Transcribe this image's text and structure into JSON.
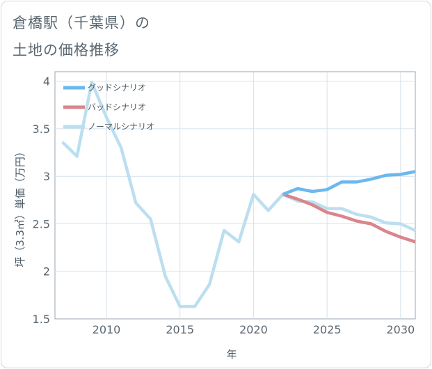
{
  "title_line1": "倉橋駅（千葉県）の",
  "title_line2": "土地の価格推移",
  "chart_data": {
    "type": "line",
    "xlabel": "年",
    "ylabel": "坪（3.3㎡）単価（万円）",
    "xlim": [
      2006.5,
      2031
    ],
    "ylim": [
      1.5,
      4.1
    ],
    "xticks": [
      2010,
      2015,
      2020,
      2025,
      2030
    ],
    "yticks": [
      1.5,
      2,
      2.5,
      3,
      3.5,
      4
    ],
    "xtick_labels": [
      "2010",
      "2015",
      "2020",
      "2025",
      "2030"
    ],
    "ytick_labels": [
      "1.5",
      "2",
      "2.5",
      "3",
      "3.5",
      "4"
    ],
    "grid": true,
    "legend_position": "top-left",
    "series": [
      {
        "name": "グッドシナリオ",
        "color": "#6cb8ee",
        "x": [
          2022,
          2023,
          2024,
          2025,
          2026,
          2027,
          2028,
          2029,
          2030,
          2031
        ],
        "y": [
          2.81,
          2.87,
          2.84,
          2.86,
          2.94,
          2.94,
          2.97,
          3.01,
          3.02,
          3.05
        ]
      },
      {
        "name": "バッドシナリオ",
        "color": "#d9858c",
        "x": [
          2022,
          2023,
          2024,
          2025,
          2026,
          2027,
          2028,
          2029,
          2030,
          2031
        ],
        "y": [
          2.81,
          2.76,
          2.7,
          2.62,
          2.58,
          2.53,
          2.5,
          2.42,
          2.36,
          2.31
        ]
      },
      {
        "name": "ノーマルシナリオ",
        "color": "#bcdff0",
        "x": [
          2007,
          2008,
          2009,
          2010,
          2011,
          2012,
          2013,
          2014,
          2015,
          2016,
          2017,
          2018,
          2019,
          2020,
          2021,
          2022,
          2023,
          2024,
          2025,
          2026,
          2027,
          2028,
          2029,
          2030,
          2031
        ],
        "y": [
          3.36,
          3.21,
          3.99,
          3.62,
          3.3,
          2.72,
          2.55,
          1.95,
          1.63,
          1.63,
          1.86,
          2.43,
          2.31,
          2.81,
          2.64,
          2.81,
          2.74,
          2.73,
          2.66,
          2.66,
          2.6,
          2.57,
          2.51,
          2.5,
          2.43
        ]
      }
    ]
  }
}
